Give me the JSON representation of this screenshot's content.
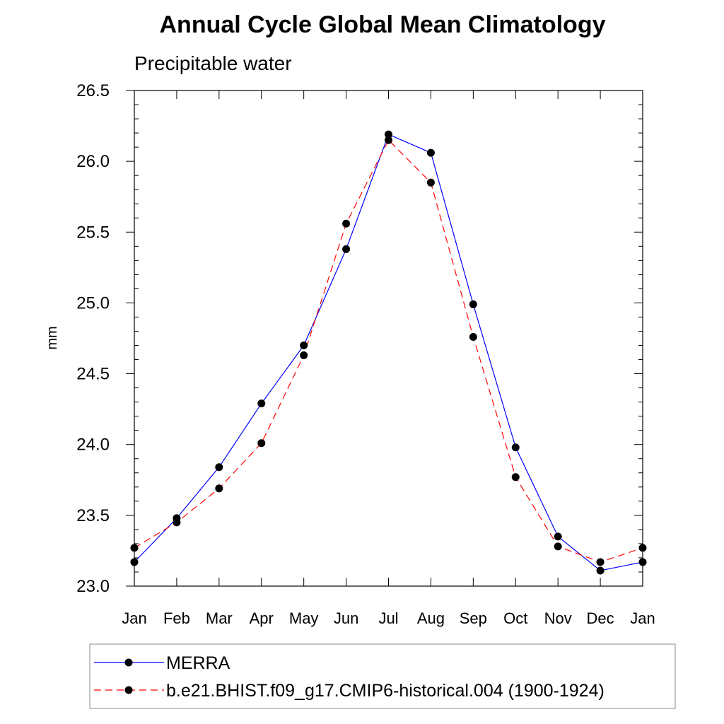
{
  "chart_data": {
    "type": "line",
    "title": "Annual Cycle Global Mean Climatology",
    "subtitle": "Precipitable water",
    "xlabel": "",
    "ylabel": "mm",
    "categories": [
      "Jan",
      "Feb",
      "Mar",
      "Apr",
      "May",
      "Jun",
      "Jul",
      "Aug",
      "Sep",
      "Oct",
      "Nov",
      "Dec",
      "Jan"
    ],
    "ylim": [
      23.0,
      26.5
    ],
    "yticks": [
      "23.0",
      "23.5",
      "24.0",
      "24.5",
      "25.0",
      "25.5",
      "26.0",
      "26.5"
    ],
    "grid": false,
    "legend_position": "bottom",
    "series": [
      {
        "name": "MERRA",
        "color": "#0000ff",
        "dash": "solid",
        "marker": "filled-circle",
        "values": [
          23.17,
          23.48,
          23.84,
          24.29,
          24.7,
          25.38,
          26.19,
          26.06,
          24.99,
          23.98,
          23.35,
          23.11,
          23.17
        ]
      },
      {
        "name": "b.e21.BHIST.f09_g17.CMIP6-historical.004 (1900-1924)",
        "color": "#ff0000",
        "dash": "dashed",
        "marker": "filled-circle",
        "values": [
          23.27,
          23.45,
          23.69,
          24.01,
          24.63,
          25.56,
          26.15,
          25.85,
          24.76,
          23.77,
          23.28,
          23.17,
          23.27
        ]
      }
    ]
  }
}
